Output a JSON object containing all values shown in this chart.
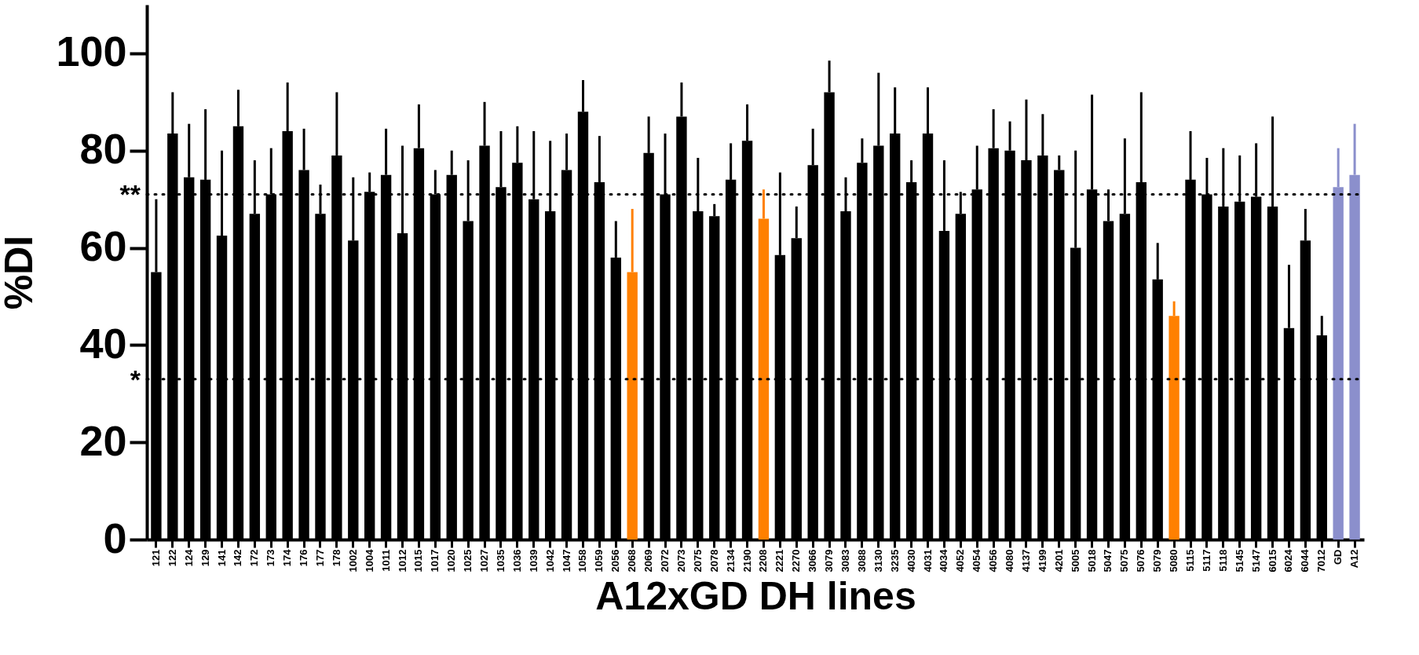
{
  "chart_data": {
    "type": "bar",
    "xlabel": "A12xGD DH lines",
    "ylabel": "%DI",
    "categories": [
      "121",
      "122",
      "124",
      "129",
      "141",
      "142",
      "172",
      "173",
      "174",
      "176",
      "177",
      "178",
      "1002",
      "1004",
      "1011",
      "1012",
      "1015",
      "1017",
      "1020",
      "1025",
      "1027",
      "1035",
      "1036",
      "1039",
      "1042",
      "1047",
      "1058",
      "1059",
      "2056",
      "2068",
      "2069",
      "2072",
      "2073",
      "2075",
      "2078",
      "2134",
      "2190",
      "2208",
      "2221",
      "2270",
      "3066",
      "3079",
      "3083",
      "3088",
      "3130",
      "3235",
      "4030",
      "4031",
      "4034",
      "4052",
      "4054",
      "4056",
      "4080",
      "4137",
      "4199",
      "4201",
      "5005",
      "5018",
      "5047",
      "5075",
      "5076",
      "5079",
      "5080",
      "5115",
      "5117",
      "5118",
      "5145",
      "5147",
      "6015",
      "6024",
      "6044",
      "7012",
      "GD",
      "A12"
    ],
    "values": [
      55,
      83.5,
      74.5,
      74,
      62.5,
      85,
      67,
      71,
      84,
      76,
      67,
      79,
      61.5,
      71.5,
      75,
      63,
      80.5,
      71,
      75,
      65.5,
      81,
      72.5,
      77.5,
      70,
      67.5,
      76,
      88,
      73.5,
      58,
      55,
      79.5,
      71,
      87,
      67.5,
      66.5,
      74,
      82,
      66,
      58.5,
      62,
      77,
      92,
      67.5,
      77.5,
      81,
      83.5,
      73.5,
      83.5,
      63.5,
      67,
      72,
      80.5,
      80,
      78,
      79,
      76,
      60,
      72,
      65.5,
      67,
      73.5,
      53.5,
      46,
      74,
      71,
      68.5,
      69.5,
      70.5,
      68.5,
      43.5,
      61.5,
      42,
      72.5,
      75
    ],
    "errors": [
      [
        55,
        70
      ],
      [
        83.5,
        92
      ],
      [
        74.5,
        85.5
      ],
      [
        74,
        88.5
      ],
      [
        62.5,
        80
      ],
      [
        85,
        92.5
      ],
      [
        67,
        78
      ],
      [
        71,
        80.5
      ],
      [
        84,
        94
      ],
      [
        76,
        84.5
      ],
      [
        67,
        73
      ],
      [
        79,
        92
      ],
      [
        61.5,
        74.5
      ],
      [
        71.5,
        75.5
      ],
      [
        75,
        84.5
      ],
      [
        63,
        81
      ],
      [
        80.5,
        89.5
      ],
      [
        71,
        76
      ],
      [
        75,
        80
      ],
      [
        65.5,
        78
      ],
      [
        81,
        90
      ],
      [
        72.5,
        84
      ],
      [
        77.5,
        85
      ],
      [
        70,
        84
      ],
      [
        67.5,
        82
      ],
      [
        76,
        83.5
      ],
      [
        88,
        94.5
      ],
      [
        73.5,
        83
      ],
      [
        58,
        65.5
      ],
      [
        55,
        68
      ],
      [
        79.5,
        87
      ],
      [
        71,
        83.5
      ],
      [
        87,
        94
      ],
      [
        67.5,
        78.5
      ],
      [
        66.5,
        69
      ],
      [
        74,
        81.5
      ],
      [
        82,
        89.5
      ],
      [
        66,
        72
      ],
      [
        58.5,
        75.5
      ],
      [
        62,
        68.5
      ],
      [
        77,
        84.5
      ],
      [
        92,
        98.5
      ],
      [
        67.5,
        74.5
      ],
      [
        77.5,
        82.5
      ],
      [
        81,
        96
      ],
      [
        83.5,
        93
      ],
      [
        73.5,
        78
      ],
      [
        83.5,
        93
      ],
      [
        63.5,
        78
      ],
      [
        67,
        71.5
      ],
      [
        72,
        81
      ],
      [
        80.5,
        88.5
      ],
      [
        80,
        86
      ],
      [
        78,
        90.5
      ],
      [
        79,
        87.5
      ],
      [
        76,
        79
      ],
      [
        60,
        80
      ],
      [
        72,
        91.5
      ],
      [
        65.5,
        72
      ],
      [
        67,
        82.5
      ],
      [
        73.5,
        92
      ],
      [
        53.5,
        61
      ],
      [
        46,
        49
      ],
      [
        74,
        84
      ],
      [
        71,
        78.5
      ],
      [
        68.5,
        80.5
      ],
      [
        69.5,
        79
      ],
      [
        70.5,
        81.5
      ],
      [
        68.5,
        87
      ],
      [
        43.5,
        56.5
      ],
      [
        61.5,
        68
      ],
      [
        42,
        46
      ],
      [
        72.5,
        80.5
      ],
      [
        75,
        85.5
      ]
    ],
    "colors": [
      "#000000",
      "#000000",
      "#000000",
      "#000000",
      "#000000",
      "#000000",
      "#000000",
      "#000000",
      "#000000",
      "#000000",
      "#000000",
      "#000000",
      "#000000",
      "#000000",
      "#000000",
      "#000000",
      "#000000",
      "#000000",
      "#000000",
      "#000000",
      "#000000",
      "#000000",
      "#000000",
      "#000000",
      "#000000",
      "#000000",
      "#000000",
      "#000000",
      "#000000",
      "#ff8000",
      "#000000",
      "#000000",
      "#000000",
      "#000000",
      "#000000",
      "#000000",
      "#000000",
      "#ff8000",
      "#000000",
      "#000000",
      "#000000",
      "#000000",
      "#000000",
      "#000000",
      "#000000",
      "#000000",
      "#000000",
      "#000000",
      "#000000",
      "#000000",
      "#000000",
      "#000000",
      "#000000",
      "#000000",
      "#000000",
      "#000000",
      "#000000",
      "#000000",
      "#000000",
      "#000000",
      "#000000",
      "#000000",
      "#ff8000",
      "#000000",
      "#000000",
      "#000000",
      "#000000",
      "#000000",
      "#000000",
      "#000000",
      "#000000",
      "#000000",
      "#8b8fcc",
      "#8b8fcc"
    ],
    "ylim": [
      0,
      110
    ],
    "yticks": [
      0,
      20,
      40,
      60,
      80,
      100
    ],
    "ref_lines": [
      {
        "axis": "y",
        "value": 71,
        "label": "**",
        "color": "#000000",
        "line_style": "dotted"
      },
      {
        "axis": "y",
        "value": 33,
        "label": "*",
        "color": "#000000",
        "line_style": "dotted"
      }
    ],
    "grid": false
  }
}
